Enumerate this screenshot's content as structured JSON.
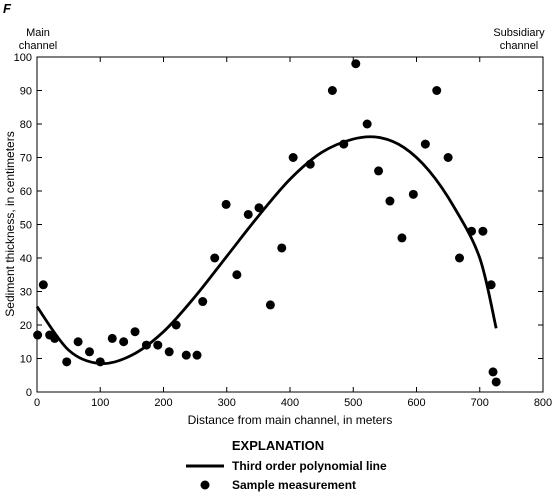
{
  "panel_label": "F",
  "left_annotation": [
    "Main",
    "channel"
  ],
  "right_annotation": [
    "Subsidiary",
    "channel"
  ],
  "explanation": {
    "heading": "EXPLANATION",
    "line_label": "Third order polynomial line",
    "marker_label": "Sample measurement"
  },
  "chart_data": {
    "type": "scatter",
    "xlabel": "Distance from main channel, in meters",
    "ylabel": "Sediment thickness, in centimeters",
    "xlim": [
      0,
      800
    ],
    "ylim": [
      0,
      100
    ],
    "xticks": [
      0,
      100,
      200,
      300,
      400,
      500,
      600,
      700,
      800
    ],
    "yticks": [
      0,
      10,
      20,
      30,
      40,
      50,
      60,
      70,
      80,
      90,
      100
    ],
    "grid": false,
    "legend_position": "below",
    "series": [
      {
        "name": "Sample measurement",
        "kind": "points",
        "points": [
          [
            1,
            17
          ],
          [
            10,
            32
          ],
          [
            20,
            17
          ],
          [
            28,
            16
          ],
          [
            47,
            9
          ],
          [
            65,
            15
          ],
          [
            83,
            12
          ],
          [
            100,
            9
          ],
          [
            119,
            16
          ],
          [
            137,
            15
          ],
          [
            155,
            18
          ],
          [
            173,
            14
          ],
          [
            191,
            14
          ],
          [
            209,
            12
          ],
          [
            220,
            20
          ],
          [
            236,
            11
          ],
          [
            253,
            11
          ],
          [
            262,
            27
          ],
          [
            281,
            40
          ],
          [
            299,
            56
          ],
          [
            316,
            35
          ],
          [
            334,
            53
          ],
          [
            351,
            55
          ],
          [
            369,
            26
          ],
          [
            387,
            43
          ],
          [
            405,
            70
          ],
          [
            432,
            68
          ],
          [
            467,
            90
          ],
          [
            485,
            74
          ],
          [
            504,
            98
          ],
          [
            522,
            80
          ],
          [
            540,
            66
          ],
          [
            558,
            57
          ],
          [
            577,
            46
          ],
          [
            595,
            59
          ],
          [
            614,
            74
          ],
          [
            632,
            90
          ],
          [
            650,
            70
          ],
          [
            668,
            40
          ],
          [
            687,
            48
          ],
          [
            705,
            48
          ],
          [
            718,
            32
          ],
          [
            721,
            6
          ],
          [
            726,
            3
          ]
        ]
      },
      {
        "name": "Third order polynomial line",
        "kind": "line",
        "points": [
          [
            0,
            25.5
          ],
          [
            50,
            12.5
          ],
          [
            100,
            8.5
          ],
          [
            150,
            11
          ],
          [
            200,
            18
          ],
          [
            250,
            28.5
          ],
          [
            300,
            40.5
          ],
          [
            350,
            52.5
          ],
          [
            400,
            63.5
          ],
          [
            450,
            71.5
          ],
          [
            500,
            75.5
          ],
          [
            540,
            76
          ],
          [
            580,
            73
          ],
          [
            620,
            66
          ],
          [
            660,
            55
          ],
          [
            700,
            40
          ],
          [
            726,
            19
          ]
        ]
      }
    ]
  }
}
